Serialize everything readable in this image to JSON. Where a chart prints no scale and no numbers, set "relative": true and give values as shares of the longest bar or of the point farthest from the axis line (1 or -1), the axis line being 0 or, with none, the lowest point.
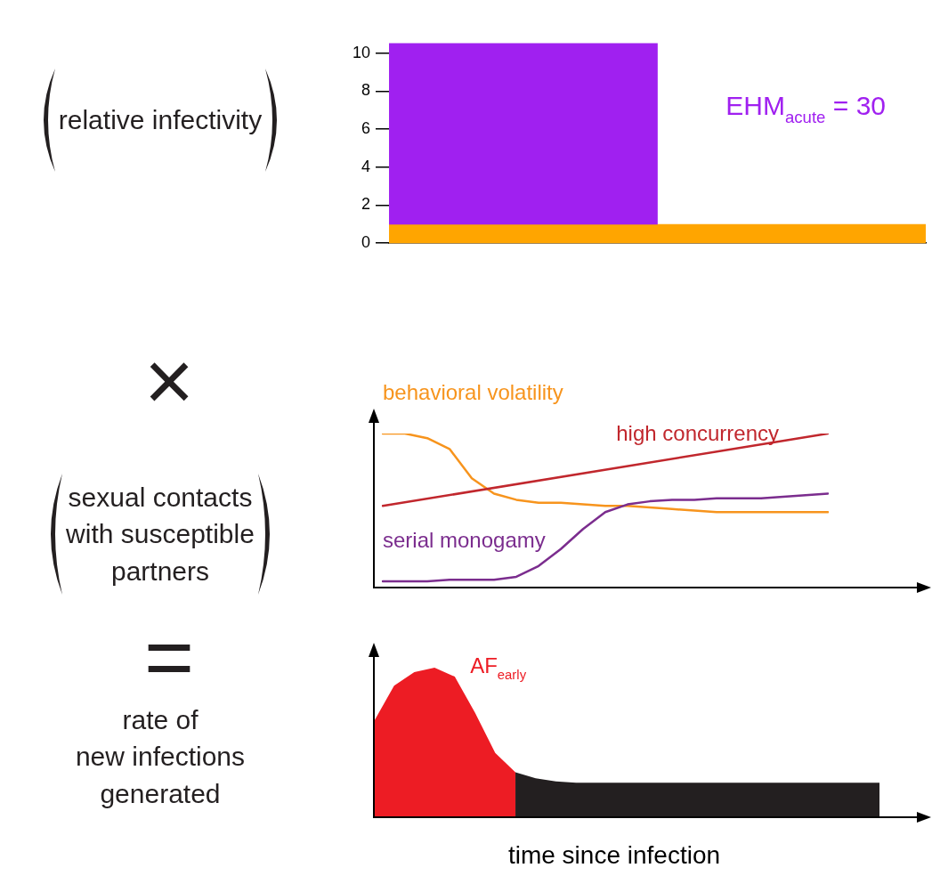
{
  "chart_data": [
    {
      "type": "bar",
      "ylabel": "relative infectivity",
      "annotations": [
        "EHM$_{acute}$ = 30"
      ],
      "categories": [
        null,
        null
      ],
      "ylim": [
        0,
        10.6
      ],
      "yticks": [
        0,
        2,
        4,
        6,
        8,
        10
      ],
      "tick_labels": "y",
      "bands": [
        {
          "axis": "y",
          "from": 0,
          "to": 1,
          "color": "#ffa500"
        }
      ],
      "series": [
        {
          "color": "#a020f0",
          "values": [
            9.5,
            null
          ],
          "base": [
            1,
            null
          ]
        }
      ]
    },
    {
      "type": "line",
      "title": "×",
      "ylabel": "sexual contacts\nwith susceptible\npartners",
      "relative": true,
      "categories": [
        null,
        null,
        null,
        null,
        null,
        null,
        null,
        null,
        null,
        null,
        null,
        null,
        null,
        null,
        null,
        null,
        null,
        null,
        null,
        null,
        null
      ],
      "tick_labels": false,
      "series": [
        {
          "name": "behavioral volatility",
          "color": "#f7941d",
          "values": [
            1.0,
            1.0,
            0.97,
            0.9,
            0.71,
            0.61,
            0.57,
            0.55,
            0.55,
            0.54,
            0.53,
            0.53,
            0.52,
            0.51,
            0.5,
            0.49,
            0.49,
            0.49,
            0.49,
            0.49,
            0.49
          ]
        },
        {
          "name": "high concurrency",
          "color": "#c1272d",
          "values": [
            0.53,
            null,
            null,
            null,
            null,
            null,
            null,
            null,
            null,
            null,
            null,
            null,
            null,
            null,
            null,
            null,
            null,
            null,
            null,
            null,
            1.0
          ]
        },
        {
          "name": "serial monogamy",
          "color": "#7b2d8e",
          "values": [
            0.04,
            0.04,
            0.04,
            0.05,
            0.05,
            0.05,
            0.07,
            0.14,
            0.25,
            0.38,
            0.49,
            0.54,
            0.56,
            0.57,
            0.57,
            0.58,
            0.58,
            0.58,
            0.59,
            0.6,
            0.61
          ]
        }
      ]
    },
    {
      "type": "area",
      "title": "=",
      "ylabel": "rate of\nnew infections\ngenerated",
      "xlabel": "time since infection",
      "relative": true,
      "categories": [
        null,
        null,
        null,
        null,
        null,
        null,
        null,
        null,
        null,
        null,
        null,
        null,
        null,
        null,
        null,
        null,
        null,
        null,
        null,
        null,
        null,
        null,
        null,
        null,
        null,
        null
      ],
      "tick_labels": false,
      "series": [
        {
          "name": "AF$_{early}$",
          "color": "#ed1c24",
          "values": [
            0.64,
            0.88,
            0.97,
            1.0,
            0.94,
            0.7,
            0.43,
            0.3,
            null,
            null,
            null,
            null,
            null,
            null,
            null,
            null,
            null,
            null,
            null,
            null,
            null,
            null,
            null,
            null,
            null,
            null
          ]
        },
        {
          "color": "#231f20",
          "values": [
            null,
            null,
            null,
            null,
            null,
            null,
            null,
            0.3,
            0.26,
            0.24,
            0.23,
            0.23,
            0.23,
            0.23,
            0.23,
            0.23,
            0.23,
            0.23,
            0.23,
            0.23,
            0.23,
            0.23,
            0.23,
            0.23,
            0.23,
            0.23
          ]
        }
      ]
    }
  ]
}
